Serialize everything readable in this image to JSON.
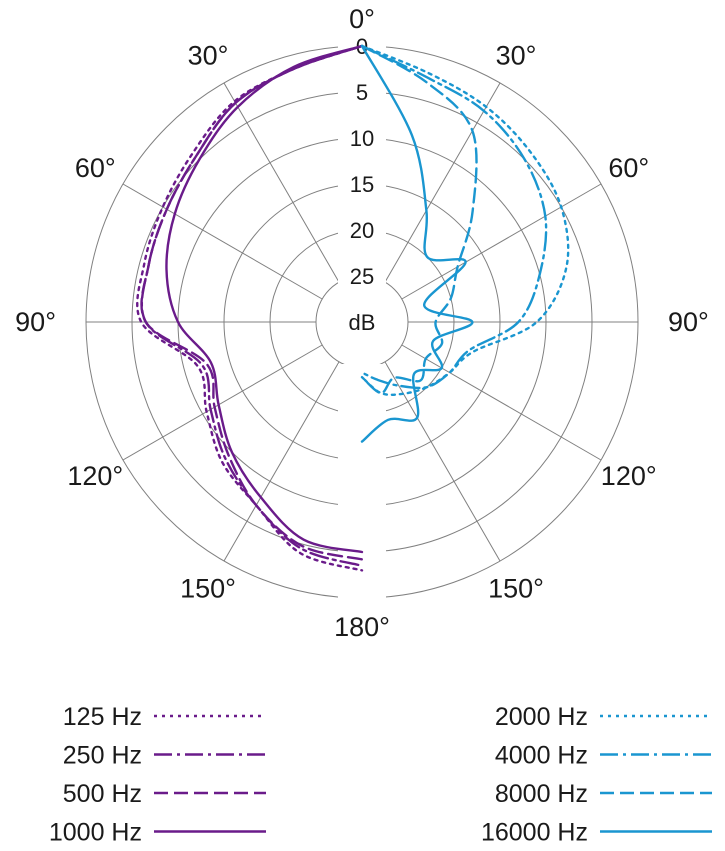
{
  "chart_data": {
    "type": "polar",
    "unit": "dB",
    "radial_ticks": [
      "0",
      "5",
      "10",
      "15",
      "20",
      "25"
    ],
    "radial_range": [
      0,
      25
    ],
    "angle_labels": [
      "0°",
      "30°",
      "60°",
      "90°",
      "120°",
      "150°",
      "180°",
      "150°",
      "120°",
      "90°",
      "60°",
      "30°"
    ],
    "grid": true,
    "legend_position": "bottom",
    "colors": {
      "low": "#6a1b8a",
      "high": "#1a96d0",
      "grid": "#808080"
    },
    "angles": [
      0,
      15,
      30,
      45,
      60,
      75,
      90,
      105,
      120,
      135,
      150,
      165,
      180
    ],
    "series": [
      {
        "name": "125 Hz",
        "side": "left",
        "style": "dotted",
        "color": "#6a1b8a",
        "values": [
          0,
          1.5,
          2.3,
          4,
          5,
          5.5,
          6,
          11.5,
          10.5,
          8.5,
          7,
          4,
          3
        ]
      },
      {
        "name": "250 Hz",
        "side": "left",
        "style": "dash-dot",
        "color": "#6a1b8a",
        "values": [
          0,
          1.5,
          2.5,
          4.5,
          5.5,
          6,
          6.5,
          12,
          11,
          9,
          7,
          4.5,
          3.5
        ]
      },
      {
        "name": "500 Hz",
        "side": "left",
        "style": "dashed",
        "color": "#6a1b8a",
        "values": [
          0,
          1.5,
          2.5,
          4.5,
          5.5,
          6,
          6.5,
          12.5,
          11.5,
          9.5,
          7,
          4.8,
          4.2
        ]
      },
      {
        "name": "1000 Hz",
        "side": "left",
        "style": "solid",
        "color": "#6a1b8a",
        "values": [
          0,
          1.3,
          3,
          5,
          6.5,
          8,
          10,
          13,
          12,
          10,
          8,
          5.5,
          5
        ]
      },
      {
        "name": "2000 Hz",
        "side": "right",
        "style": "dotted",
        "color": "#1a96d0",
        "values": [
          0,
          2,
          3,
          4,
          5,
          7,
          11,
          17.5,
          19,
          20,
          21,
          22,
          24
        ]
      },
      {
        "name": "4000 Hz",
        "side": "right",
        "style": "dash-dot",
        "color": "#1a96d0",
        "values": [
          0,
          2.5,
          3.5,
          5,
          7,
          10,
          13,
          18,
          19,
          20,
          22,
          23.5,
          24.5
        ]
      },
      {
        "name": "8000 Hz",
        "side": "right",
        "style": "dashed",
        "color": "#1a96d0",
        "values": [
          0,
          3,
          6,
          13,
          18,
          20,
          22,
          21,
          22,
          21,
          23,
          22,
          24
        ]
      },
      {
        "name": "16000 Hz",
        "side": "right",
        "style": "solid",
        "color": "#1a96d0",
        "values": [
          0,
          9,
          16,
          20,
          17,
          23,
          18,
          22,
          20,
          22,
          18,
          19,
          17
        ]
      }
    ]
  }
}
